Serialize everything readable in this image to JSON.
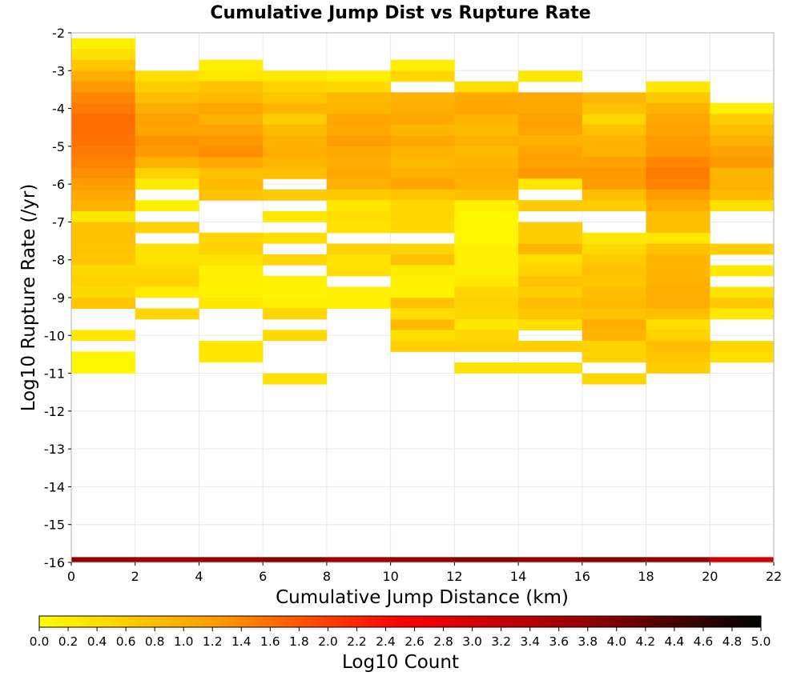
{
  "chart_data": {
    "type": "heatmap",
    "title": "Cumulative Jump Dist vs Rupture Rate",
    "xlabel": "Cumulative Jump Distance (km)",
    "ylabel": "Log10 Rupture Rate (/yr)",
    "colorbar_label": "Log10 Count",
    "xlim": [
      0,
      22
    ],
    "ylim": [
      -16,
      -2
    ],
    "x_ticks": [
      "0",
      "2",
      "4",
      "6",
      "8",
      "10",
      "12",
      "14",
      "16",
      "18",
      "20",
      "22"
    ],
    "y_ticks": [
      "-2",
      "-3",
      "-4",
      "-5",
      "-6",
      "-7",
      "-8",
      "-9",
      "-10",
      "-11",
      "-12",
      "-13",
      "-14",
      "-15",
      "-16"
    ],
    "colorbar_range": [
      0,
      5
    ],
    "colorbar_ticks": [
      "0.0",
      "0.2",
      "0.4",
      "0.6",
      "0.8",
      "1.0",
      "1.2",
      "1.4",
      "1.6",
      "1.8",
      "2.0",
      "2.2",
      "2.4",
      "2.6",
      "2.8",
      "3.0",
      "3.2",
      "3.4",
      "3.6",
      "3.8",
      "4.0",
      "4.2",
      "4.4",
      "4.6",
      "4.8",
      "5.0"
    ],
    "colormap": [
      "#ffff00",
      "#ff9900",
      "#ff0000",
      "#990000",
      "#000000"
    ],
    "x_bin_width": 2,
    "y_bin_height": 0.286,
    "grid": true,
    "columns": [
      {
        "x_start": 0,
        "cells": [
          [
            "-2.43",
            0.2
          ],
          [
            "-2.71",
            0.4
          ],
          [
            "-3.00",
            0.7
          ],
          [
            "-3.29",
            1.0
          ],
          [
            "-3.57",
            1.25
          ],
          [
            "-3.86",
            1.4
          ],
          [
            "-4.14",
            1.5
          ],
          [
            "-4.43",
            1.6
          ],
          [
            "-4.71",
            1.6
          ],
          [
            "-5.00",
            1.55
          ],
          [
            "-5.29",
            1.5
          ],
          [
            "-5.57",
            1.45
          ],
          [
            "-5.86",
            1.35
          ],
          [
            "-6.14",
            1.2
          ],
          [
            "-6.43",
            1.05
          ],
          [
            "-6.71",
            0.95
          ],
          [
            "-7.00",
            0.3
          ],
          [
            "-7.29",
            0.75
          ],
          [
            "-7.57",
            0.75
          ],
          [
            "-7.86",
            0.75
          ],
          [
            "-8.14",
            0.7
          ],
          [
            "-8.43",
            0.45
          ],
          [
            "-8.71",
            0.55
          ],
          [
            "-9.00",
            0.45
          ],
          [
            "-9.29",
            0.7
          ],
          [
            "-10.14",
            0.3
          ],
          [
            "-10.71",
            0.1
          ],
          [
            "-11.00",
            0.1
          ]
        ]
      },
      {
        "x_start": 2,
        "cells": [
          [
            "-3.29",
            0.4
          ],
          [
            "-3.57",
            0.6
          ],
          [
            "-3.86",
            0.8
          ],
          [
            "-4.14",
            1.0
          ],
          [
            "-4.43",
            1.15
          ],
          [
            "-4.71",
            1.1
          ],
          [
            "-5.00",
            1.3
          ],
          [
            "-5.29",
            1.25
          ],
          [
            "-5.57",
            0.95
          ],
          [
            "-5.86",
            0.55
          ],
          [
            "-6.14",
            0.25
          ],
          [
            "-6.71",
            0.2
          ],
          [
            "-7.29",
            0.55
          ],
          [
            "-7.86",
            0.35
          ],
          [
            "-8.14",
            0.35
          ],
          [
            "-8.43",
            0.45
          ],
          [
            "-8.71",
            0.55
          ],
          [
            "-9.00",
            0.25
          ],
          [
            "-9.57",
            0.5
          ]
        ]
      },
      {
        "x_start": 4,
        "cells": [
          [
            "-3.00",
            0.2
          ],
          [
            "-3.29",
            0.3
          ],
          [
            "-3.57",
            0.75
          ],
          [
            "-3.86",
            0.85
          ],
          [
            "-4.14",
            1.1
          ],
          [
            "-4.43",
            0.95
          ],
          [
            "-4.71",
            1.15
          ],
          [
            "-5.00",
            1.25
          ],
          [
            "-5.29",
            1.35
          ],
          [
            "-5.57",
            1.05
          ],
          [
            "-5.86",
            0.75
          ],
          [
            "-6.14",
            0.85
          ],
          [
            "-6.43",
            0.75
          ],
          [
            "-7.57",
            0.5
          ],
          [
            "-7.86",
            0.55
          ],
          [
            "-8.14",
            0.35
          ],
          [
            "-8.43",
            0.2
          ],
          [
            "-8.71",
            0.2
          ],
          [
            "-9.00",
            0.15
          ],
          [
            "-9.29",
            0.3
          ],
          [
            "-10.43",
            0.3
          ],
          [
            "-10.71",
            0.3
          ]
        ]
      },
      {
        "x_start": 6,
        "cells": [
          [
            "-3.29",
            0.3
          ],
          [
            "-3.57",
            0.55
          ],
          [
            "-3.86",
            0.7
          ],
          [
            "-4.14",
            0.9
          ],
          [
            "-4.43",
            0.6
          ],
          [
            "-4.71",
            0.85
          ],
          [
            "-5.00",
            0.95
          ],
          [
            "-5.29",
            1.0
          ],
          [
            "-5.57",
            0.9
          ],
          [
            "-5.86",
            0.8
          ],
          [
            "-6.43",
            0.65
          ],
          [
            "-7.00",
            0.3
          ],
          [
            "-7.57",
            0.4
          ],
          [
            "-8.14",
            0.5
          ],
          [
            "-8.71",
            0.15
          ],
          [
            "-9.00",
            0.15
          ],
          [
            "-9.29",
            0.2
          ],
          [
            "-9.57",
            0.5
          ],
          [
            "-10.14",
            0.45
          ],
          [
            "-11.29",
            0.35
          ]
        ]
      },
      {
        "x_start": 8,
        "cells": [
          [
            "-3.29",
            0.2
          ],
          [
            "-3.57",
            0.45
          ],
          [
            "-3.86",
            0.85
          ],
          [
            "-4.14",
            0.9
          ],
          [
            "-4.43",
            1.1
          ],
          [
            "-4.71",
            1.05
          ],
          [
            "-5.00",
            1.2
          ],
          [
            "-5.29",
            1.05
          ],
          [
            "-5.57",
            1.0
          ],
          [
            "-5.86",
            1.05
          ],
          [
            "-6.14",
            0.95
          ],
          [
            "-6.43",
            0.65
          ],
          [
            "-6.71",
            0.3
          ],
          [
            "-7.00",
            0.4
          ],
          [
            "-7.29",
            0.35
          ],
          [
            "-7.86",
            0.55
          ],
          [
            "-8.14",
            0.35
          ],
          [
            "-8.43",
            0.4
          ],
          [
            "-9.00",
            0.2
          ],
          [
            "-9.29",
            0.2
          ]
        ]
      },
      {
        "x_start": 10,
        "cells": [
          [
            "-3.00",
            0.2
          ],
          [
            "-3.29",
            0.5
          ],
          [
            "-3.86",
            0.95
          ],
          [
            "-4.14",
            1.0
          ],
          [
            "-4.43",
            1.05
          ],
          [
            "-4.71",
            0.9
          ],
          [
            "-5.00",
            1.05
          ],
          [
            "-5.29",
            0.95
          ],
          [
            "-5.57",
            0.85
          ],
          [
            "-5.86",
            0.95
          ],
          [
            "-6.14",
            1.1
          ],
          [
            "-6.43",
            0.7
          ],
          [
            "-6.71",
            0.5
          ],
          [
            "-7.00",
            0.5
          ],
          [
            "-7.29",
            0.45
          ],
          [
            "-7.86",
            0.5
          ],
          [
            "-8.14",
            0.75
          ],
          [
            "-8.43",
            0.25
          ],
          [
            "-8.71",
            0.2
          ],
          [
            "-9.00",
            0.15
          ],
          [
            "-9.29",
            0.75
          ],
          [
            "-9.57",
            0.4
          ],
          [
            "-9.86",
            0.85
          ],
          [
            "-10.14",
            0.4
          ],
          [
            "-10.43",
            0.6
          ]
        ]
      },
      {
        "x_start": 12,
        "cells": [
          [
            "-3.57",
            0.4
          ],
          [
            "-3.86",
            1.05
          ],
          [
            "-4.14",
            1.1
          ],
          [
            "-4.43",
            0.9
          ],
          [
            "-4.71",
            0.85
          ],
          [
            "-5.00",
            0.95
          ],
          [
            "-5.29",
            0.85
          ],
          [
            "-5.57",
            0.9
          ],
          [
            "-5.86",
            1.0
          ],
          [
            "-6.14",
            0.95
          ],
          [
            "-6.43",
            0.8
          ],
          [
            "-6.71",
            0.2
          ],
          [
            "-7.00",
            0.1
          ],
          [
            "-7.29",
            0.1
          ],
          [
            "-7.57",
            0.1
          ],
          [
            "-7.86",
            0.2
          ],
          [
            "-8.14",
            0.2
          ],
          [
            "-8.43",
            0.2
          ],
          [
            "-8.71",
            0.3
          ],
          [
            "-9.00",
            0.5
          ],
          [
            "-9.29",
            0.55
          ],
          [
            "-9.57",
            0.5
          ],
          [
            "-9.86",
            0.3
          ],
          [
            "-10.14",
            0.5
          ],
          [
            "-10.43",
            0.55
          ],
          [
            "-11.00",
            0.35
          ]
        ]
      },
      {
        "x_start": 14,
        "cells": [
          [
            "-3.29",
            0.3
          ],
          [
            "-3.86",
            1.1
          ],
          [
            "-4.14",
            1.05
          ],
          [
            "-4.43",
            1.15
          ],
          [
            "-4.71",
            1.1
          ],
          [
            "-5.00",
            0.95
          ],
          [
            "-5.29",
            1.1
          ],
          [
            "-5.57",
            1.15
          ],
          [
            "-5.86",
            1.25
          ],
          [
            "-6.14",
            0.3
          ],
          [
            "-6.71",
            0.65
          ],
          [
            "-7.29",
            0.6
          ],
          [
            "-7.57",
            0.6
          ],
          [
            "-7.86",
            0.9
          ],
          [
            "-8.14",
            0.4
          ],
          [
            "-8.43",
            0.55
          ],
          [
            "-8.71",
            0.75
          ],
          [
            "-9.00",
            0.6
          ],
          [
            "-9.29",
            0.8
          ],
          [
            "-9.57",
            0.7
          ],
          [
            "-9.86",
            0.4
          ],
          [
            "-10.43",
            0.6
          ],
          [
            "-11.00",
            0.35
          ]
        ]
      },
      {
        "x_start": 16,
        "cells": [
          [
            "-3.86",
            0.9
          ],
          [
            "-4.14",
            0.75
          ],
          [
            "-4.43",
            0.5
          ],
          [
            "-4.71",
            0.75
          ],
          [
            "-5.00",
            0.95
          ],
          [
            "-5.29",
            0.95
          ],
          [
            "-5.57",
            1.15
          ],
          [
            "-5.86",
            1.25
          ],
          [
            "-6.14",
            1.2
          ],
          [
            "-6.43",
            0.8
          ],
          [
            "-6.71",
            0.6
          ],
          [
            "-7.57",
            0.3
          ],
          [
            "-7.86",
            0.45
          ],
          [
            "-8.14",
            0.65
          ],
          [
            "-8.43",
            0.75
          ],
          [
            "-8.71",
            0.7
          ],
          [
            "-9.00",
            0.8
          ],
          [
            "-9.29",
            0.85
          ],
          [
            "-9.57",
            0.75
          ],
          [
            "-9.86",
            1.0
          ],
          [
            "-10.14",
            0.9
          ],
          [
            "-10.43",
            0.55
          ],
          [
            "-10.71",
            0.55
          ],
          [
            "-11.29",
            0.5
          ]
        ]
      },
      {
        "x_start": 18,
        "cells": [
          [
            "-3.57",
            0.3
          ],
          [
            "-3.86",
            0.65
          ],
          [
            "-4.14",
            0.95
          ],
          [
            "-4.43",
            1.1
          ],
          [
            "-4.71",
            1.15
          ],
          [
            "-5.00",
            1.2
          ],
          [
            "-5.29",
            1.25
          ],
          [
            "-5.57",
            1.4
          ],
          [
            "-5.86",
            1.5
          ],
          [
            "-6.14",
            1.45
          ],
          [
            "-6.43",
            1.2
          ],
          [
            "-6.71",
            1.0
          ],
          [
            "-7.00",
            0.8
          ],
          [
            "-7.29",
            0.8
          ],
          [
            "-7.57",
            0.3
          ],
          [
            "-7.86",
            0.75
          ],
          [
            "-8.14",
            0.9
          ],
          [
            "-8.43",
            0.9
          ],
          [
            "-8.71",
            0.95
          ],
          [
            "-9.00",
            1.0
          ],
          [
            "-9.29",
            1.0
          ],
          [
            "-9.57",
            0.8
          ],
          [
            "-9.86",
            0.4
          ],
          [
            "-10.14",
            0.55
          ],
          [
            "-10.43",
            0.8
          ],
          [
            "-10.71",
            0.7
          ],
          [
            "-11.00",
            0.6
          ]
        ]
      },
      {
        "x_start": 20,
        "cells": [
          [
            "-4.14",
            0.2
          ],
          [
            "-4.43",
            0.6
          ],
          [
            "-4.71",
            0.8
          ],
          [
            "-5.00",
            0.95
          ],
          [
            "-5.29",
            1.15
          ],
          [
            "-5.57",
            1.25
          ],
          [
            "-5.86",
            0.9
          ],
          [
            "-6.14",
            0.95
          ],
          [
            "-6.43",
            0.85
          ],
          [
            "-6.71",
            0.4
          ],
          [
            "-7.86",
            0.6
          ],
          [
            "-8.43",
            0.3
          ],
          [
            "-9.00",
            0.35
          ],
          [
            "-9.29",
            0.65
          ],
          [
            "-9.57",
            0.3
          ],
          [
            "-10.43",
            0.5
          ],
          [
            "-10.71",
            0.4
          ]
        ]
      }
    ],
    "bottom_row": {
      "y_low": -16,
      "y_high": -15.86,
      "values": [
        3.8,
        3.7,
        3.8,
        3.9,
        3.7,
        3.8,
        3.9,
        3.8,
        3.9,
        3.8,
        3.1
      ]
    }
  }
}
